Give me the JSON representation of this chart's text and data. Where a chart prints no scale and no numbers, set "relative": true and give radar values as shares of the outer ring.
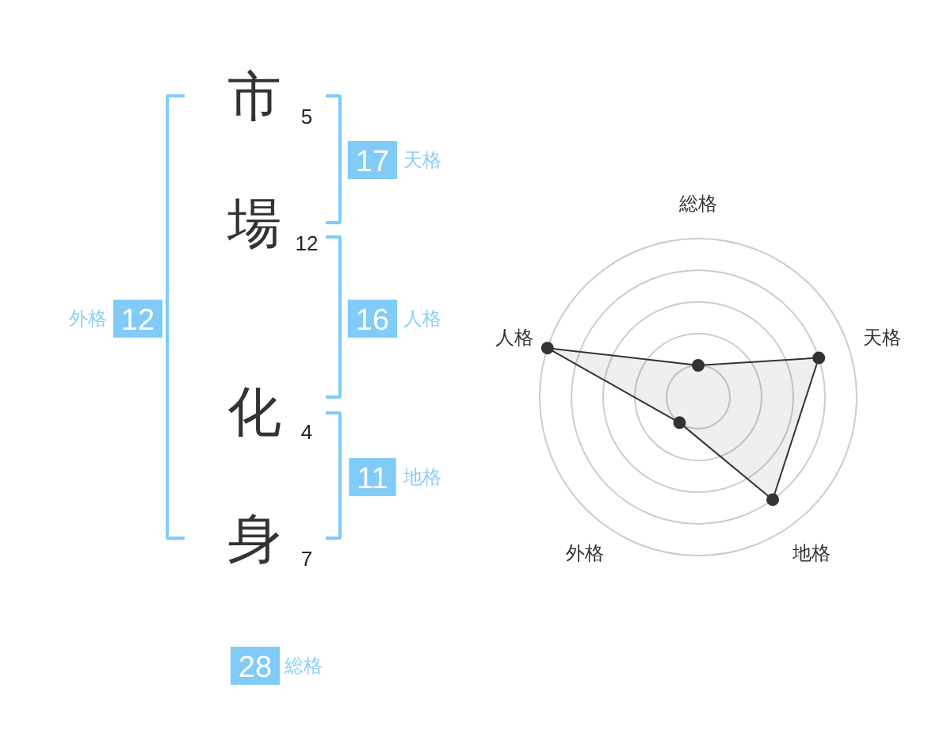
{
  "chart_data": [
    {
      "type": "other",
      "categories": [
        "市",
        "場",
        "化",
        "身"
      ],
      "values": [
        5,
        12,
        4,
        7
      ],
      "data_labels": true,
      "annotations": [
        "17",
        "天格",
        "16",
        "人格",
        "11",
        "地格",
        "12",
        "外格",
        "28",
        "総格"
      ]
    },
    {
      "type": "radar",
      "categories": [
        "総格",
        "天格",
        "地格",
        "外格",
        "人格"
      ],
      "relative": true,
      "grid": true,
      "marker": "circle",
      "series": [
        {
          "color": "#333333",
          "values": [
            0.2,
            0.8,
            0.8,
            0.2,
            1.0
          ]
        }
      ]
    }
  ]
}
